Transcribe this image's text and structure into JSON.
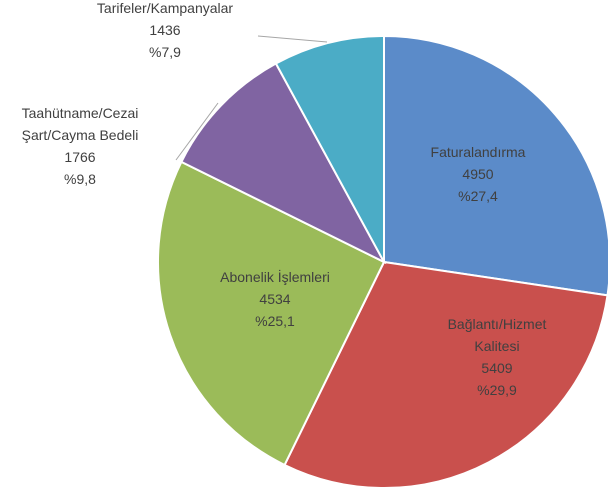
{
  "chart_data": {
    "type": "pie",
    "categories": [
      "Faturalandırma",
      "Bağlantı/Hizmet Kalitesi",
      "Abonelik İşlemleri",
      "Taahütname/Cezai Şart/Cayma Bedeli",
      "Tarifeler/Kampanyalar"
    ],
    "values": [
      4950,
      5409,
      4534,
      1766,
      1436
    ],
    "percent_labels": [
      "%27,4",
      "%29,9",
      "%25,1",
      "%9,8",
      "%7,9"
    ],
    "colors": [
      "#5b8bc9",
      "#c9504d",
      "#9bbb59",
      "#8064a2",
      "#4bacc6"
    ]
  }
}
